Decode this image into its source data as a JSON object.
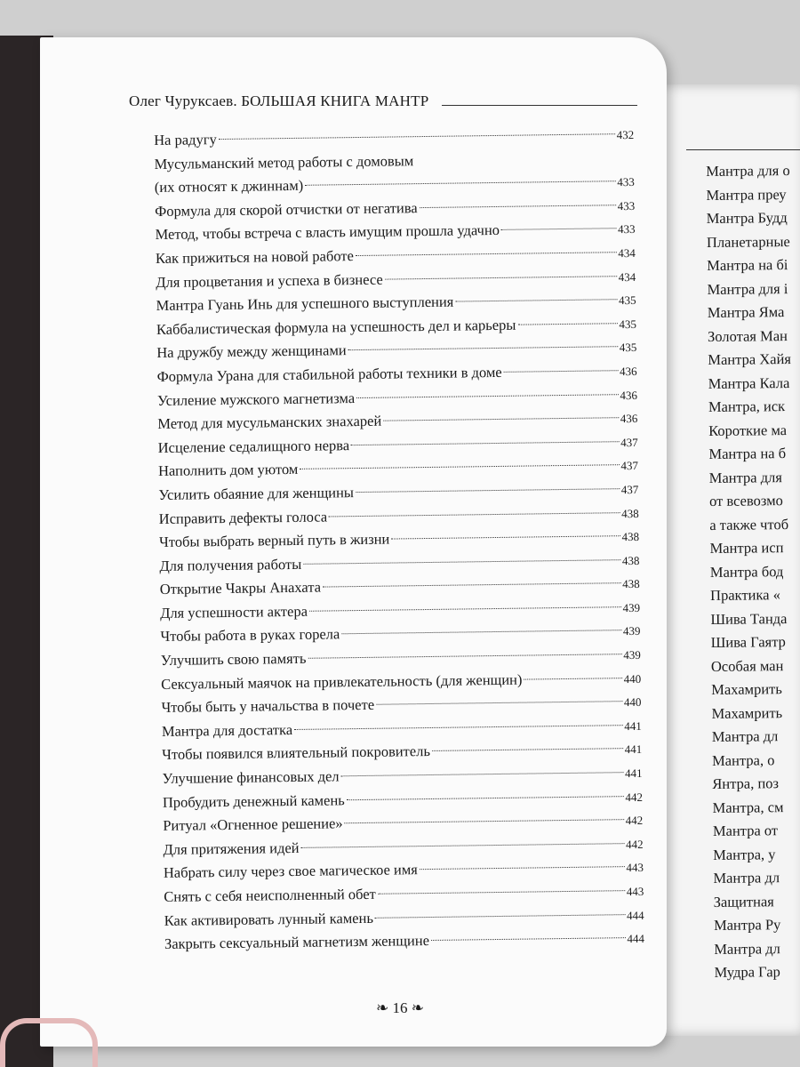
{
  "left_page": {
    "header": "Олег Чуруксаев. БОЛЬШАЯ КНИГА МАНТР",
    "entries": [
      {
        "title": [
          "На радугу"
        ],
        "page": 432
      },
      {
        "title": [
          "Мусульманский метод работы с домовым",
          "(их относят к джиннам)"
        ],
        "page": 433
      },
      {
        "title": [
          "Формула для скорой отчистки от негатива"
        ],
        "page": 433
      },
      {
        "title": [
          "Метод, чтобы встреча с власть имущим прошла удачно"
        ],
        "page": 433
      },
      {
        "title": [
          "Как прижиться на новой работе"
        ],
        "page": 434
      },
      {
        "title": [
          "Для процветания и успеха в бизнесе"
        ],
        "page": 434
      },
      {
        "title": [
          "Мантра Гуань Инь для успешного выступления"
        ],
        "page": 435
      },
      {
        "title": [
          "Каббалистическая формула на успешность дел и карьеры"
        ],
        "page": 435
      },
      {
        "title": [
          "На дружбу между женщинами"
        ],
        "page": 435
      },
      {
        "title": [
          "Формула Урана для стабильной работы техники в доме"
        ],
        "page": 436
      },
      {
        "title": [
          "Усиление мужского магнетизма"
        ],
        "page": 436
      },
      {
        "title": [
          "Метод для мусульманских знахарей"
        ],
        "page": 436
      },
      {
        "title": [
          "Исцеление седалищного нерва"
        ],
        "page": 437
      },
      {
        "title": [
          "Наполнить дом уютом"
        ],
        "page": 437
      },
      {
        "title": [
          "Усилить обаяние для женщины"
        ],
        "page": 437
      },
      {
        "title": [
          "Исправить дефекты голоса"
        ],
        "page": 438
      },
      {
        "title": [
          "Чтобы выбрать верный путь в жизни"
        ],
        "page": 438
      },
      {
        "title": [
          "Для получения работы"
        ],
        "page": 438
      },
      {
        "title": [
          "Открытие Чакры Анахата"
        ],
        "page": 438
      },
      {
        "title": [
          "Для успешности актера"
        ],
        "page": 439
      },
      {
        "title": [
          "Чтобы работа в руках горела"
        ],
        "page": 439
      },
      {
        "title": [
          "Улучшить свою память"
        ],
        "page": 439
      },
      {
        "title": [
          "Сексуальный маячок на привлекательность (для женщин)"
        ],
        "page": 440
      },
      {
        "title": [
          "Чтобы быть у начальства в почете"
        ],
        "page": 440
      },
      {
        "title": [
          "Мантра для достатка"
        ],
        "page": 441
      },
      {
        "title": [
          "Чтобы появился влиятельный покровитель"
        ],
        "page": 441
      },
      {
        "title": [
          "Улучшение финансовых дел"
        ],
        "page": 441
      },
      {
        "title": [
          "Пробудить денежный камень"
        ],
        "page": 442
      },
      {
        "title": [
          "Ритуал «Огненное решение»"
        ],
        "page": 442
      },
      {
        "title": [
          "Для притяжения идей"
        ],
        "page": 442
      },
      {
        "title": [
          "Набрать силу через свое магическое имя"
        ],
        "page": 443
      },
      {
        "title": [
          "Снять с себя неисполненный обет"
        ],
        "page": 443
      },
      {
        "title": [
          "Как активировать лунный камень"
        ],
        "page": 444
      },
      {
        "title": [
          "Закрыть сексуальный магнетизм женщине"
        ],
        "page": 444
      }
    ],
    "page_number": 16
  },
  "right_page": {
    "entries": [
      "Мантра для о",
      "Мантра преу",
      "Мантра Будд",
      "Планетарные",
      "Мантра на бі",
      "Мантра для і",
      "Мантра Яма",
      "Золотая Ман",
      "Мантра Хайя",
      "Мантра Кала",
      "Мантра, иск",
      "Короткие ма",
      "Мантра на б",
      "Мантра для",
      "от всевозмо",
      "а также чтоб",
      "Мантра исп",
      "Мантра бод",
      "Практика «",
      "Шива Танда",
      "Шива Гаятр",
      "Особая ман",
      "Махамрить",
      "Махамрить",
      "Мантра дл",
      "Мантра, о",
      "Янтра, поз",
      "Мантра, см",
      "Мантра от",
      "Мантра, у",
      "Мантра дл",
      "Защитная",
      "Мантра Ру",
      "Мантра дл",
      "Мудра Гар"
    ]
  }
}
